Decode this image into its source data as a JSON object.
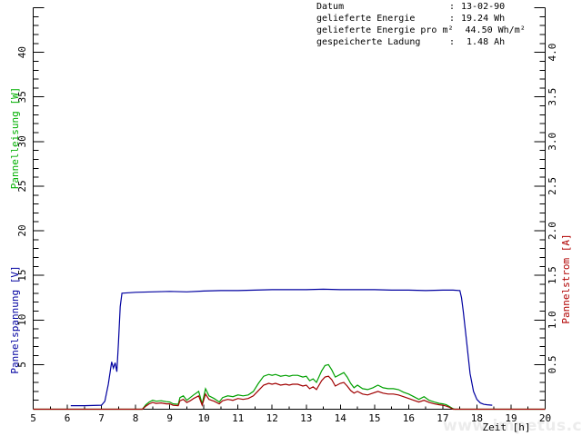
{
  "info": {
    "rows": [
      {
        "label": "Datum",
        "colon": ":",
        "value": "13-02-90"
      },
      {
        "label": "gelieferte Energie",
        "colon": ":",
        "value": "19.24 Wh"
      },
      {
        "label": "gelieferte Energie pro m²",
        "colon": "",
        "value": "44.50 Wh/m²"
      },
      {
        "label": "gespeicherte Ladung",
        "colon": ":",
        "value": " 1.48 Ah"
      }
    ]
  },
  "watermark": "www.impetus.ch",
  "chart_data": {
    "type": "line",
    "title": "",
    "xlabel": "Zeit [h]",
    "grid": false,
    "legend": "none",
    "x_axis": {
      "range": [
        5,
        20
      ],
      "major_step": 1,
      "minor_step": 0.5,
      "labels": [
        "5",
        "6",
        "7",
        "8",
        "9",
        "10",
        "11",
        "12",
        "13",
        "14",
        "15",
        "16",
        "17",
        "18",
        "19",
        "20"
      ]
    },
    "left_axis": {
      "range": [
        0,
        45
      ],
      "major_step": 5,
      "minor_step": 1,
      "labels": [
        "5",
        "10",
        "15",
        "20",
        "25",
        "30",
        "35",
        "40"
      ],
      "titles": [
        "Pannelleisung [W]",
        "Pannelspannung [V]"
      ],
      "title_colors": [
        "#00b000",
        "#0000a0"
      ]
    },
    "right_axis": {
      "range": [
        0,
        4.5
      ],
      "major_step": 0.5,
      "minor_step": 0.1,
      "labels": [
        "0.5",
        "1.0",
        "1.5",
        "2.0",
        "2.5",
        "3.0",
        "3.5",
        "4.0"
      ],
      "title": "Pannelstrom [A]",
      "title_color": "#b00000"
    },
    "series": [
      {
        "name": "Pannelspannung",
        "unit": "V",
        "axis": "left",
        "color": "#0000a0",
        "points": [
          [
            6.1,
            0.4
          ],
          [
            6.5,
            0.4
          ],
          [
            7.0,
            0.45
          ],
          [
            7.1,
            0.9
          ],
          [
            7.2,
            2.8
          ],
          [
            7.3,
            5.3
          ],
          [
            7.35,
            4.6
          ],
          [
            7.4,
            5.2
          ],
          [
            7.45,
            4.2
          ],
          [
            7.5,
            7.5
          ],
          [
            7.55,
            11.5
          ],
          [
            7.6,
            13.0
          ],
          [
            7.8,
            13.05
          ],
          [
            8.0,
            13.1
          ],
          [
            8.5,
            13.15
          ],
          [
            9.0,
            13.2
          ],
          [
            9.5,
            13.15
          ],
          [
            10.0,
            13.25
          ],
          [
            10.5,
            13.3
          ],
          [
            11.0,
            13.3
          ],
          [
            11.5,
            13.35
          ],
          [
            12.0,
            13.4
          ],
          [
            12.5,
            13.4
          ],
          [
            13.0,
            13.4
          ],
          [
            13.5,
            13.45
          ],
          [
            14.0,
            13.4
          ],
          [
            14.5,
            13.4
          ],
          [
            15.0,
            13.4
          ],
          [
            15.5,
            13.35
          ],
          [
            16.0,
            13.35
          ],
          [
            16.5,
            13.3
          ],
          [
            17.0,
            13.35
          ],
          [
            17.3,
            13.35
          ],
          [
            17.5,
            13.3
          ],
          [
            17.55,
            12.5
          ],
          [
            17.6,
            11.0
          ],
          [
            17.7,
            7.5
          ],
          [
            17.8,
            4.0
          ],
          [
            17.9,
            2.0
          ],
          [
            18.0,
            1.1
          ],
          [
            18.1,
            0.7
          ],
          [
            18.2,
            0.55
          ],
          [
            18.3,
            0.5
          ],
          [
            18.45,
            0.45
          ]
        ]
      },
      {
        "name": "Pannelleisung",
        "unit": "W",
        "axis": "left",
        "color": "#00a000",
        "points": [
          [
            5,
            0
          ],
          [
            8.2,
            0
          ],
          [
            8.3,
            0.5
          ],
          [
            8.4,
            0.8
          ],
          [
            8.5,
            1.0
          ],
          [
            8.6,
            0.9
          ],
          [
            8.75,
            0.95
          ],
          [
            8.9,
            0.85
          ],
          [
            9.0,
            0.8
          ],
          [
            9.1,
            0.6
          ],
          [
            9.25,
            0.55
          ],
          [
            9.3,
            1.3
          ],
          [
            9.4,
            1.5
          ],
          [
            9.5,
            1.0
          ],
          [
            9.6,
            1.3
          ],
          [
            9.7,
            1.6
          ],
          [
            9.85,
            2.0
          ],
          [
            9.95,
            0.6
          ],
          [
            10.05,
            2.3
          ],
          [
            10.15,
            1.5
          ],
          [
            10.3,
            1.2
          ],
          [
            10.45,
            0.8
          ],
          [
            10.55,
            1.3
          ],
          [
            10.7,
            1.5
          ],
          [
            10.85,
            1.4
          ],
          [
            11.0,
            1.6
          ],
          [
            11.15,
            1.5
          ],
          [
            11.3,
            1.6
          ],
          [
            11.45,
            2.0
          ],
          [
            11.6,
            2.9
          ],
          [
            11.75,
            3.7
          ],
          [
            11.9,
            3.9
          ],
          [
            12.0,
            3.8
          ],
          [
            12.1,
            3.9
          ],
          [
            12.25,
            3.7
          ],
          [
            12.4,
            3.8
          ],
          [
            12.5,
            3.7
          ],
          [
            12.6,
            3.8
          ],
          [
            12.75,
            3.8
          ],
          [
            12.9,
            3.6
          ],
          [
            13.0,
            3.7
          ],
          [
            13.1,
            3.2
          ],
          [
            13.2,
            3.4
          ],
          [
            13.3,
            3.0
          ],
          [
            13.45,
            4.3
          ],
          [
            13.55,
            4.9
          ],
          [
            13.65,
            5.0
          ],
          [
            13.75,
            4.4
          ],
          [
            13.85,
            3.6
          ],
          [
            14.0,
            3.9
          ],
          [
            14.1,
            4.1
          ],
          [
            14.2,
            3.6
          ],
          [
            14.3,
            2.9
          ],
          [
            14.4,
            2.4
          ],
          [
            14.5,
            2.7
          ],
          [
            14.65,
            2.3
          ],
          [
            14.8,
            2.2
          ],
          [
            14.95,
            2.4
          ],
          [
            15.1,
            2.7
          ],
          [
            15.25,
            2.4
          ],
          [
            15.4,
            2.3
          ],
          [
            15.55,
            2.3
          ],
          [
            15.7,
            2.2
          ],
          [
            15.85,
            1.9
          ],
          [
            16.0,
            1.7
          ],
          [
            16.15,
            1.4
          ],
          [
            16.3,
            1.1
          ],
          [
            16.45,
            1.4
          ],
          [
            16.6,
            1.0
          ],
          [
            16.75,
            0.8
          ],
          [
            16.9,
            0.65
          ],
          [
            17.0,
            0.6
          ],
          [
            17.1,
            0.5
          ],
          [
            17.2,
            0.3
          ],
          [
            17.3,
            0.05
          ],
          [
            17.35,
            0
          ],
          [
            20,
            0
          ]
        ]
      },
      {
        "name": "Pannelstrom",
        "unit": "A",
        "axis": "right",
        "color": "#a00000",
        "points": [
          [
            5,
            0
          ],
          [
            8.2,
            0
          ],
          [
            8.3,
            0.035
          ],
          [
            8.4,
            0.06
          ],
          [
            8.5,
            0.075
          ],
          [
            8.6,
            0.065
          ],
          [
            8.75,
            0.07
          ],
          [
            8.9,
            0.06
          ],
          [
            9.0,
            0.06
          ],
          [
            9.1,
            0.045
          ],
          [
            9.25,
            0.04
          ],
          [
            9.3,
            0.095
          ],
          [
            9.4,
            0.11
          ],
          [
            9.5,
            0.075
          ],
          [
            9.6,
            0.095
          ],
          [
            9.7,
            0.12
          ],
          [
            9.85,
            0.15
          ],
          [
            9.95,
            0.045
          ],
          [
            10.05,
            0.17
          ],
          [
            10.15,
            0.11
          ],
          [
            10.3,
            0.09
          ],
          [
            10.45,
            0.06
          ],
          [
            10.55,
            0.095
          ],
          [
            10.7,
            0.11
          ],
          [
            10.85,
            0.1
          ],
          [
            11.0,
            0.12
          ],
          [
            11.15,
            0.11
          ],
          [
            11.3,
            0.12
          ],
          [
            11.45,
            0.15
          ],
          [
            11.6,
            0.21
          ],
          [
            11.75,
            0.27
          ],
          [
            11.9,
            0.29
          ],
          [
            12.0,
            0.28
          ],
          [
            12.1,
            0.29
          ],
          [
            12.25,
            0.27
          ],
          [
            12.4,
            0.28
          ],
          [
            12.5,
            0.27
          ],
          [
            12.6,
            0.28
          ],
          [
            12.75,
            0.28
          ],
          [
            12.9,
            0.26
          ],
          [
            13.0,
            0.27
          ],
          [
            13.1,
            0.23
          ],
          [
            13.2,
            0.25
          ],
          [
            13.3,
            0.22
          ],
          [
            13.45,
            0.32
          ],
          [
            13.55,
            0.36
          ],
          [
            13.65,
            0.37
          ],
          [
            13.75,
            0.33
          ],
          [
            13.85,
            0.26
          ],
          [
            14.0,
            0.29
          ],
          [
            14.1,
            0.3
          ],
          [
            14.2,
            0.26
          ],
          [
            14.3,
            0.21
          ],
          [
            14.4,
            0.18
          ],
          [
            14.5,
            0.2
          ],
          [
            14.65,
            0.17
          ],
          [
            14.8,
            0.16
          ],
          [
            14.95,
            0.18
          ],
          [
            15.1,
            0.2
          ],
          [
            15.25,
            0.18
          ],
          [
            15.4,
            0.17
          ],
          [
            15.55,
            0.17
          ],
          [
            15.7,
            0.16
          ],
          [
            15.85,
            0.14
          ],
          [
            16.0,
            0.12
          ],
          [
            16.15,
            0.1
          ],
          [
            16.3,
            0.08
          ],
          [
            16.45,
            0.1
          ],
          [
            16.6,
            0.075
          ],
          [
            16.75,
            0.06
          ],
          [
            16.9,
            0.05
          ],
          [
            17.0,
            0.045
          ],
          [
            17.1,
            0.035
          ],
          [
            17.2,
            0.02
          ],
          [
            17.3,
            0
          ],
          [
            20,
            0
          ]
        ]
      }
    ]
  }
}
